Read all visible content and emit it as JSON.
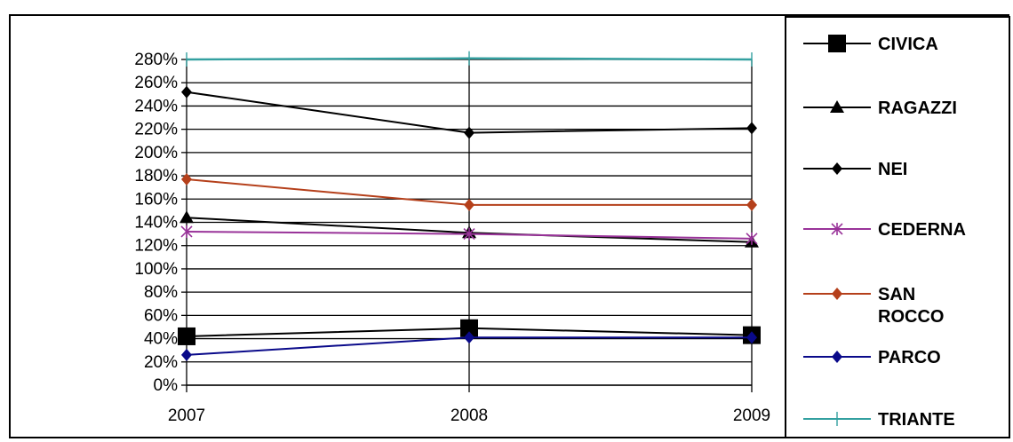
{
  "chart_data": {
    "type": "line",
    "x": [
      "2007",
      "2008",
      "2009"
    ],
    "ylim": [
      0,
      280
    ],
    "yticks": [
      0,
      20,
      40,
      60,
      80,
      100,
      120,
      140,
      160,
      180,
      200,
      220,
      240,
      260,
      280
    ],
    "ytick_suffix": "%",
    "grid": true,
    "legend_position": "right",
    "series": [
      {
        "name": "CIVICA",
        "values": [
          42,
          49,
          43
        ],
        "color": "#000000",
        "marker": "square"
      },
      {
        "name": "RAGAZZI",
        "values": [
          144,
          131,
          123
        ],
        "color": "#000000",
        "marker": "triangle"
      },
      {
        "name": "NEI",
        "values": [
          252,
          217,
          221
        ],
        "color": "#000000",
        "marker": "diamond"
      },
      {
        "name": "CEDERNA",
        "values": [
          132,
          130,
          126
        ],
        "color": "#993399",
        "marker": "star"
      },
      {
        "name": "SAN ROCCO",
        "values": [
          177,
          155,
          155
        ],
        "color": "#b5401b",
        "marker": "circle"
      },
      {
        "name": "PARCO",
        "values": [
          26,
          41,
          41
        ],
        "color": "#0a0a8a",
        "marker": "diamond"
      },
      {
        "name": "TRIANTE",
        "values": [
          280,
          281,
          280
        ],
        "color": "#33a0a0",
        "marker": "plus"
      }
    ]
  }
}
